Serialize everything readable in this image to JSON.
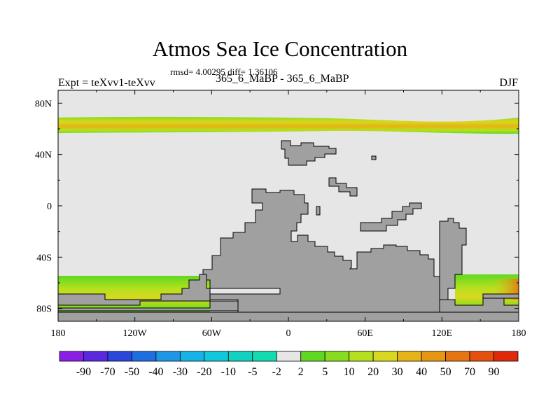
{
  "chart_data": {
    "type": "heatmap",
    "title": "Atmos Sea Ice Concentration",
    "stats": "rmsd= 4.00295  diff= 1.36106",
    "left_label": "Expt = teXvv1-teXvv",
    "center_label": "365_6_MaBP - 365_6_MaBP",
    "right_label": "DJF",
    "x_ticks": [
      "180",
      "120W",
      "60W",
      "0",
      "60E",
      "120E",
      "180"
    ],
    "y_ticks": [
      "80N",
      "40N",
      "0",
      "40S",
      "80S"
    ],
    "lon_range": [
      -180,
      180
    ],
    "lat_range": [
      -90,
      90
    ],
    "colorbar": {
      "labels": [
        "-90",
        "-70",
        "-50",
        "-40",
        "-30",
        "-20",
        "-10",
        "-5",
        "-2",
        "2",
        "5",
        "10",
        "20",
        "30",
        "40",
        "50",
        "70",
        "90"
      ],
      "colors": [
        "#8a1ee6",
        "#5a28e0",
        "#2a46dc",
        "#1e6ee0",
        "#1e96e6",
        "#16b4e6",
        "#10c8dc",
        "#10d2c0",
        "#10dcb0",
        "#e6e6e6",
        "#60d820",
        "#88dc1e",
        "#b4e01e",
        "#d8d81e",
        "#e6b414",
        "#e69610",
        "#e67410",
        "#e6500c",
        "#e0280a"
      ]
    },
    "land_color": "#a0a0a0",
    "ocean_color": "#e6e6e6",
    "ice_bands": [
      {
        "region": "northern hemisphere",
        "lat_range": [
          55,
          70
        ],
        "typical_value": 20
      },
      {
        "region": "southern hemisphere",
        "lat_range": [
          -85,
          -55
        ],
        "typical_value": 20
      }
    ]
  }
}
